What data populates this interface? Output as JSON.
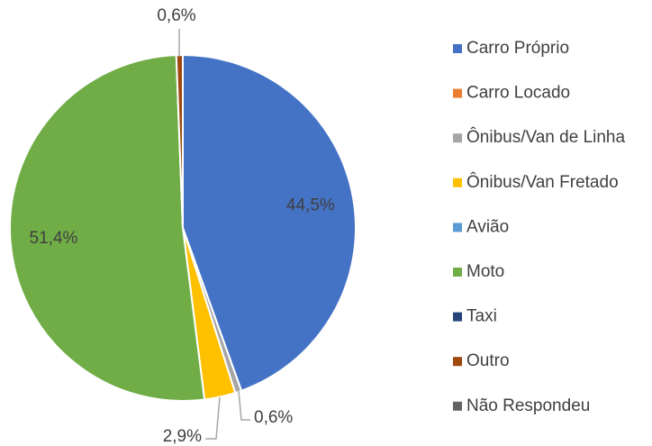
{
  "chart_data": {
    "type": "pie",
    "categories": [
      "Carro Próprio",
      "Carro Locado",
      "Ônibus/Van de Linha",
      "Ônibus/Van Fretado",
      "Avião",
      "Moto",
      "Taxi",
      "Outro",
      "Não Respondeu"
    ],
    "values": [
      44.5,
      0,
      0.6,
      2.9,
      0,
      51.4,
      0,
      0.6,
      0
    ],
    "value_labels": [
      "44,5%",
      null,
      "0,6%",
      "2,9%",
      null,
      "51,4%",
      null,
      "0,6%",
      null
    ],
    "colors": [
      "#4472c4",
      "#ed7d31",
      "#a5a5a5",
      "#ffc000",
      "#5b9bd5",
      "#70ad47",
      "#264478",
      "#9e480e",
      "#636363"
    ],
    "legend": "right"
  }
}
